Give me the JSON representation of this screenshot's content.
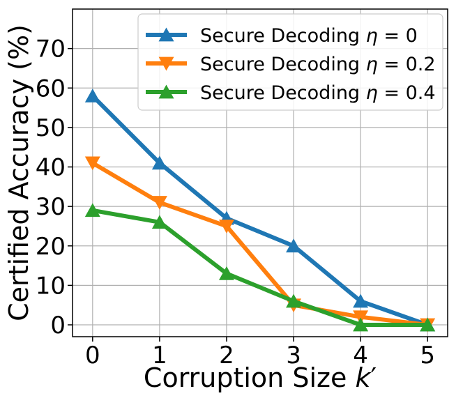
{
  "chart_data": {
    "type": "line",
    "x": [
      0,
      1,
      2,
      3,
      4,
      5
    ],
    "x_ticks": [
      "0",
      "1",
      "2",
      "3",
      "4",
      "5"
    ],
    "y_ticks": [
      "0",
      "10",
      "20",
      "30",
      "40",
      "50",
      "60",
      "70"
    ],
    "xlabel_text": "Corruption Size ",
    "xlabel_var": "k",
    "xlabel_prime": "′",
    "ylabel": "Certified Accuracy (%)",
    "xlim": [
      -0.3,
      5.3
    ],
    "ylim": [
      -3,
      80
    ],
    "grid": true,
    "legend_position": "top-right",
    "series": [
      {
        "name_text": "Secure Decoding ",
        "name_var": "η",
        "name_eq": " = 0",
        "marker": "triangle-up",
        "color": "#1f77b4",
        "values": [
          58,
          41,
          27,
          20,
          6,
          0
        ]
      },
      {
        "name_text": "Secure Decoding ",
        "name_var": "η",
        "name_eq": " = 0.2",
        "marker": "triangle-down",
        "color": "#ff7f0e",
        "values": [
          41,
          31,
          25,
          5,
          2,
          0
        ]
      },
      {
        "name_text": "Secure Decoding ",
        "name_var": "η",
        "name_eq": " = 0.4",
        "marker": "triangle-up",
        "color": "#2ca02c",
        "values": [
          29,
          26,
          13,
          6,
          0,
          0
        ]
      }
    ]
  }
}
